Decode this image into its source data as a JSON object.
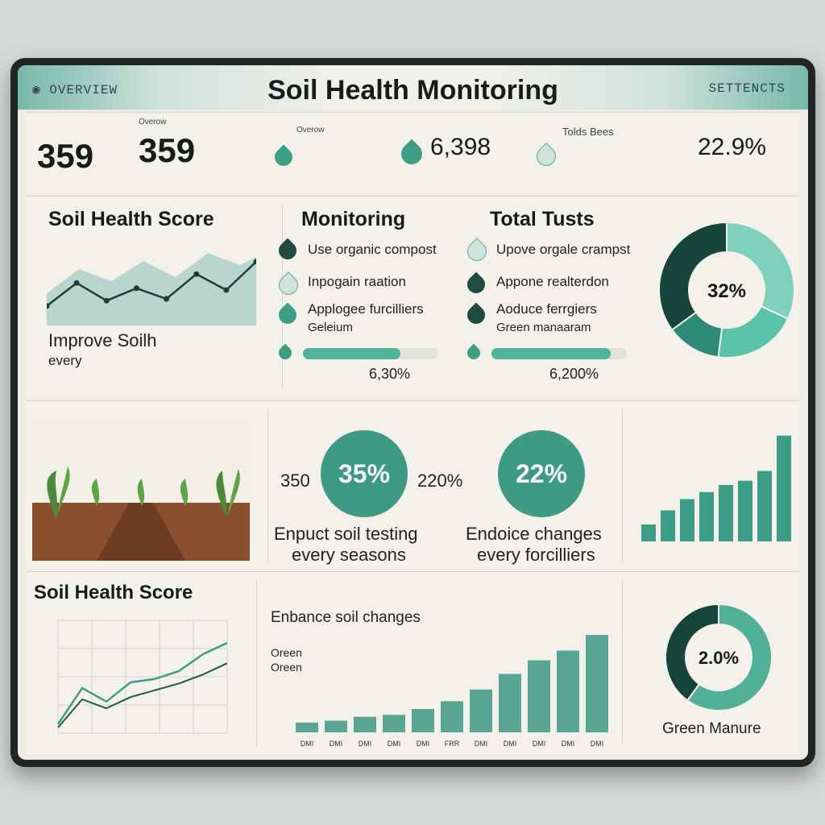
{
  "header": {
    "title": "Soil Health Monitoring",
    "overview": "OVERVIEW",
    "settings": "SETTENCTS"
  },
  "stats": [
    {
      "caption": "",
      "value": "359",
      "subcaption": ""
    },
    {
      "caption": "Overow",
      "value": "359",
      "subcaption": ""
    },
    {
      "caption": "Overow",
      "value": "",
      "subcaption": ""
    },
    {
      "caption": "",
      "value": "6,398",
      "subcaption": ""
    },
    {
      "caption": "Tolds Bees",
      "value": "",
      "subcaption": ""
    },
    {
      "caption": "",
      "value": "22.9%",
      "subcaption": ""
    }
  ],
  "section2": {
    "score_title": "Soil Health Score",
    "score_text1": "Improve Soilh",
    "score_text2": "every",
    "monitoring_title": "Monitoring",
    "monitoring_items": [
      "Use organic compost",
      "Inpogain raation",
      "Applogee furcilliers",
      "Geleium"
    ],
    "monitoring_pct": "6,30%",
    "tests_title": "Total Tusts",
    "tests_items": [
      "Upove orgale crampst",
      "Appone realterdon",
      "Aoduce ferrgiers",
      "Green manaaram"
    ],
    "tests_pct": "6,200%",
    "donut_value": "32%",
    "monitoring_progress": 0.72,
    "tests_progress": 0.88
  },
  "section3": {
    "field_caption": "",
    "kpi1_value": "350",
    "kpi1_circle": "35%",
    "kpi1_text1": "Enpuct soil testing",
    "kpi1_text2": "every seasons",
    "kpi2_value": "220%",
    "kpi2_circle": "22%",
    "kpi2_text1": "Endoice changes",
    "kpi2_text2": "every forcilliers"
  },
  "section4": {
    "score_title": "Soil Health Score",
    "bars_title": "Enbance soil changes",
    "bars_sub1": "Oreen",
    "bars_sub2": "Oreen",
    "donut_value": "2.0%",
    "donut_label": "Green Manure"
  },
  "chart_data": [
    {
      "type": "area",
      "title": "",
      "series": [
        {
          "name": "",
          "values": [
            22,
            48,
            28,
            42,
            30,
            58,
            40,
            72
          ]
        }
      ],
      "ylim": [
        0,
        100
      ]
    },
    {
      "type": "pie",
      "values": [
        32,
        20,
        13,
        35
      ],
      "center_label": "32%"
    },
    {
      "type": "bar",
      "categories": [
        "1",
        "2",
        "3",
        "4",
        "5",
        "6",
        "7",
        "8"
      ],
      "values": [
        12,
        22,
        30,
        35,
        40,
        43,
        50,
        75
      ],
      "ylim": [
        0,
        80
      ]
    },
    {
      "type": "line",
      "series": [
        {
          "name": "",
          "values": [
            8,
            40,
            28,
            45,
            48,
            55,
            70,
            80
          ]
        },
        {
          "name": "",
          "values": [
            5,
            30,
            22,
            32,
            38,
            44,
            52,
            62
          ]
        }
      ],
      "ylim": [
        0,
        100
      ]
    },
    {
      "type": "bar",
      "categories": [
        "DMI",
        "DMI",
        "DMI",
        "DMI",
        "DMI",
        "FRR",
        "DMI",
        "DMI",
        "DMI",
        "DMI",
        "DMI",
        "DMI"
      ],
      "values": [
        5,
        6,
        8,
        9,
        12,
        16,
        22,
        30,
        37,
        42,
        50,
        56
      ],
      "ylim": [
        0,
        60
      ]
    },
    {
      "type": "pie",
      "values": [
        60,
        40
      ],
      "center_label": "2.0%"
    }
  ]
}
